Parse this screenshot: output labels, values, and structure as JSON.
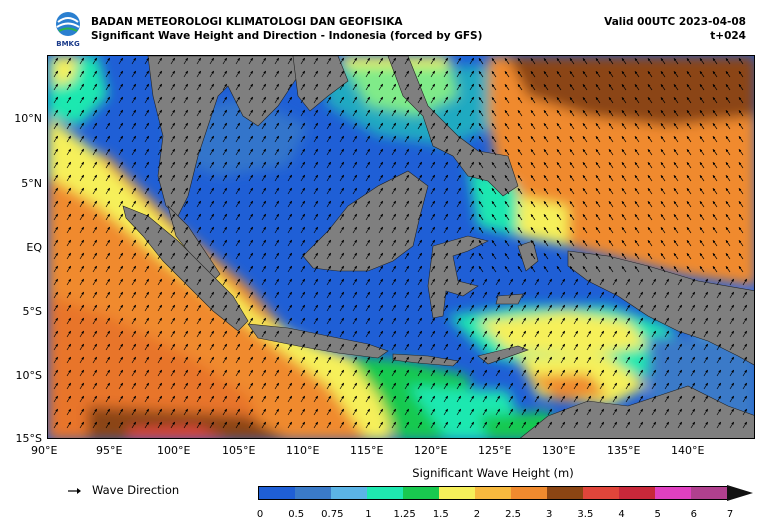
{
  "header": {
    "agency": "BADAN METEOROLOGI KLIMATOLOGI DAN GEOFISIKA",
    "product": "Significant Wave Height and Direction - Indonesia (forced by GFS)",
    "valid": "Valid 00UTC 2023-04-08",
    "lead": "t+024",
    "logo_text": "BMKG"
  },
  "map": {
    "lat_labels": [
      "10°N",
      "5°N",
      "EQ",
      "5°S",
      "10°S",
      "15°S"
    ],
    "lon_labels": [
      "90°E",
      "95°E",
      "100°E",
      "105°E",
      "110°E",
      "115°E",
      "120°E",
      "125°E",
      "130°E",
      "135°E",
      "140°E"
    ],
    "land_color": "#7f7f7f"
  },
  "legend": {
    "arrow_icon": "arrow-right-icon",
    "direction_label": "Wave Direction",
    "colorbar_title": "Significant Wave Height (m)",
    "colorbar_ticks": [
      "0",
      "0.5",
      "0.75",
      "1",
      "1.25",
      "1.5",
      "2",
      "2.5",
      "3",
      "3.5",
      "4",
      "5",
      "6",
      "7"
    ],
    "colorbar_colors": [
      "#1f5fd6",
      "#3a7ac8",
      "#5bb4e6",
      "#1fe8b0",
      "#19c94f",
      "#f6f05a",
      "#f7b93e",
      "#f08a2e",
      "#8b4513",
      "#e0453a",
      "#c8283a",
      "#e040c0",
      "#b0408e"
    ]
  }
}
